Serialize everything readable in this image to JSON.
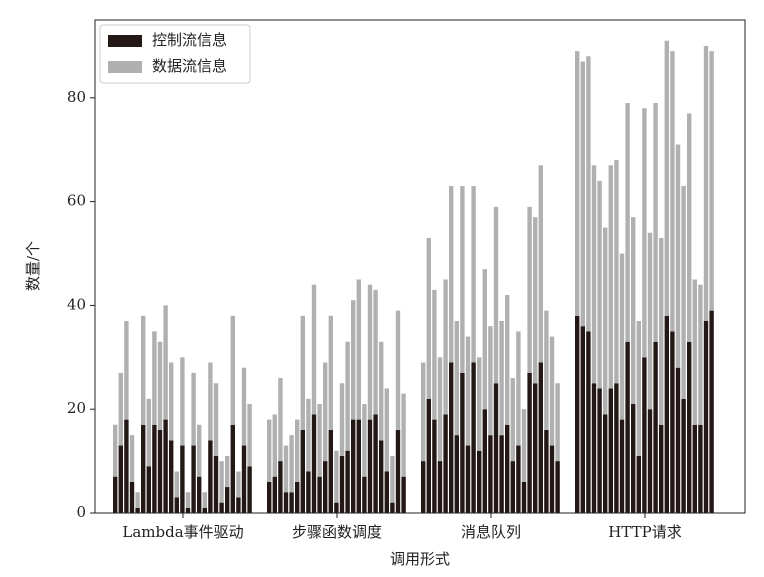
{
  "chart_data": {
    "type": "bar",
    "stacked": true,
    "xlabel": "调用形式",
    "ylabel": "数量/个",
    "categories": [
      "Lambda事件驱动",
      "步骤函数调度",
      "消息队列",
      "HTTP请求"
    ],
    "series": [
      {
        "name": "控制流信息",
        "color": "#231815",
        "values": [
          [
            7,
            13,
            18,
            6,
            1,
            17,
            9,
            17,
            16,
            18,
            14,
            3,
            13,
            1,
            13,
            7,
            1,
            14,
            11,
            2,
            5,
            17,
            3,
            13,
            9
          ],
          [
            6,
            7,
            10,
            4,
            4,
            6,
            16,
            8,
            19,
            7,
            10,
            16,
            2,
            11,
            12,
            18,
            18,
            7,
            18,
            19,
            14,
            8,
            2,
            16,
            7
          ],
          [
            10,
            22,
            18,
            10,
            19,
            29,
            15,
            27,
            13,
            29,
            12,
            20,
            15,
            25,
            15,
            17,
            10,
            13,
            6,
            27,
            25,
            29,
            16,
            13,
            10
          ],
          [
            38,
            36,
            35,
            25,
            24,
            19,
            24,
            25,
            18,
            33,
            21,
            11,
            30,
            20,
            33,
            17,
            38,
            35,
            28,
            22,
            33,
            17,
            17,
            37,
            39
          ]
        ]
      },
      {
        "name": "数据流信息",
        "color": "#b0b0b0",
        "values": [
          [
            10,
            14,
            19,
            9,
            3,
            21,
            13,
            18,
            17,
            22,
            15,
            5,
            17,
            3,
            14,
            10,
            3,
            15,
            14,
            8,
            6,
            21,
            5,
            15,
            12
          ],
          [
            12,
            12,
            16,
            9,
            11,
            12,
            22,
            14,
            25,
            14,
            19,
            22,
            10,
            14,
            21,
            23,
            27,
            14,
            26,
            24,
            19,
            16,
            9,
            23,
            16
          ],
          [
            19,
            31,
            25,
            20,
            26,
            34,
            22,
            36,
            21,
            34,
            18,
            27,
            21,
            34,
            22,
            25,
            16,
            22,
            14,
            32,
            32,
            38,
            23,
            21,
            15
          ],
          [
            51,
            51,
            53,
            42,
            40,
            36,
            43,
            43,
            32,
            46,
            36,
            26,
            48,
            34,
            46,
            36,
            53,
            54,
            43,
            41,
            44,
            28,
            27,
            53,
            50
          ]
        ]
      }
    ],
    "ylim": [
      0,
      95
    ],
    "yticks": [
      0,
      20,
      40,
      60,
      80
    ],
    "legend": "upper-left"
  }
}
